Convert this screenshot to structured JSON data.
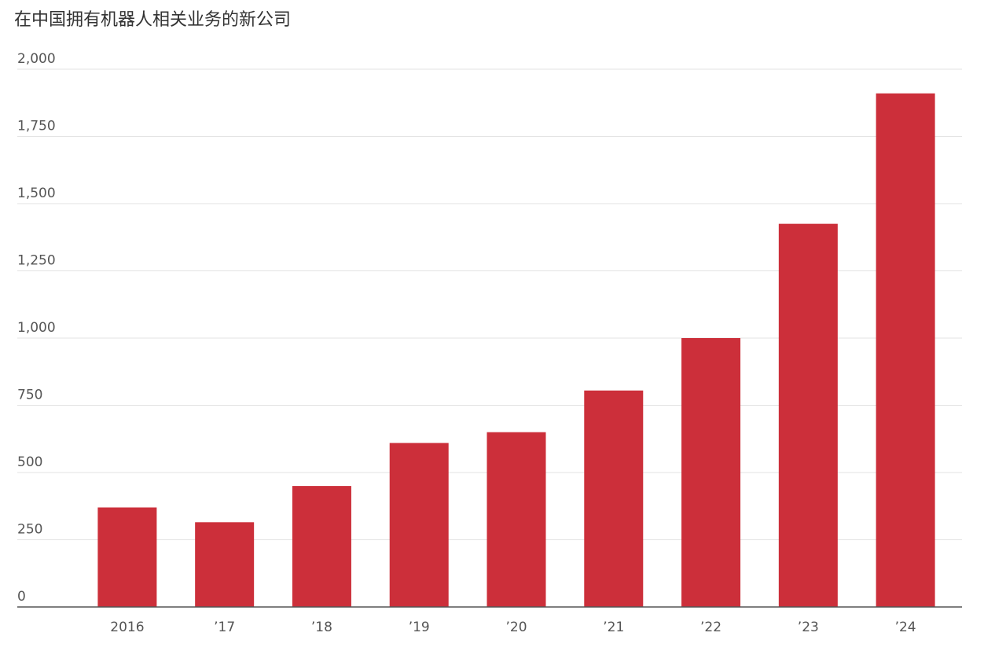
{
  "chart_data": {
    "type": "bar",
    "title": "在中国拥有机器人相关业务的新公司",
    "categories": [
      "2016",
      "’17",
      "’18",
      "’19",
      "’20",
      "’21",
      "’22",
      "’23",
      "’24"
    ],
    "values": [
      370,
      315,
      450,
      610,
      650,
      805,
      1000,
      1425,
      1910
    ],
    "color": "#cc2f3a",
    "ylim": [
      0,
      2000
    ],
    "yticks": [
      0,
      250,
      500,
      750,
      {
        "value": 1000,
        "label": "1,000"
      },
      {
        "value": 1250,
        "label": "1,250"
      },
      {
        "value": 1500,
        "label": "1,500"
      },
      {
        "value": 1750,
        "label": "1,750"
      },
      {
        "value": 2000,
        "label": "2,000"
      }
    ],
    "grid": true
  }
}
